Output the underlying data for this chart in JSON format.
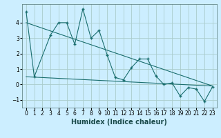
{
  "title": "",
  "xlabel": "Humidex (Indice chaleur)",
  "background_color": "#cceeff",
  "grid_color": "#aacccc",
  "line_color": "#1a6e6e",
  "xlim": [
    -0.5,
    23.5
  ],
  "ylim": [
    -1.5,
    5.2
  ],
  "yticks": [
    -1,
    0,
    1,
    2,
    3,
    4
  ],
  "series1_x": [
    0,
    1,
    3,
    4,
    5,
    6,
    7,
    8,
    9,
    10,
    11,
    12,
    13,
    14,
    15,
    16,
    17,
    18,
    19,
    20,
    21,
    22,
    23
  ],
  "series1_y": [
    4.7,
    0.5,
    3.2,
    4.0,
    4.0,
    2.6,
    4.9,
    3.0,
    3.5,
    1.9,
    0.45,
    0.3,
    1.1,
    1.65,
    1.65,
    0.55,
    0.0,
    0.1,
    -0.75,
    -0.2,
    -0.3,
    -1.1,
    -0.15
  ],
  "series2_x": [
    0,
    23
  ],
  "series2_y": [
    4.0,
    -0.1
  ],
  "series3_x": [
    0,
    23
  ],
  "series3_y": [
    0.5,
    -0.1
  ],
  "xlabel_fontsize": 7,
  "tick_fontsize": 5.5
}
